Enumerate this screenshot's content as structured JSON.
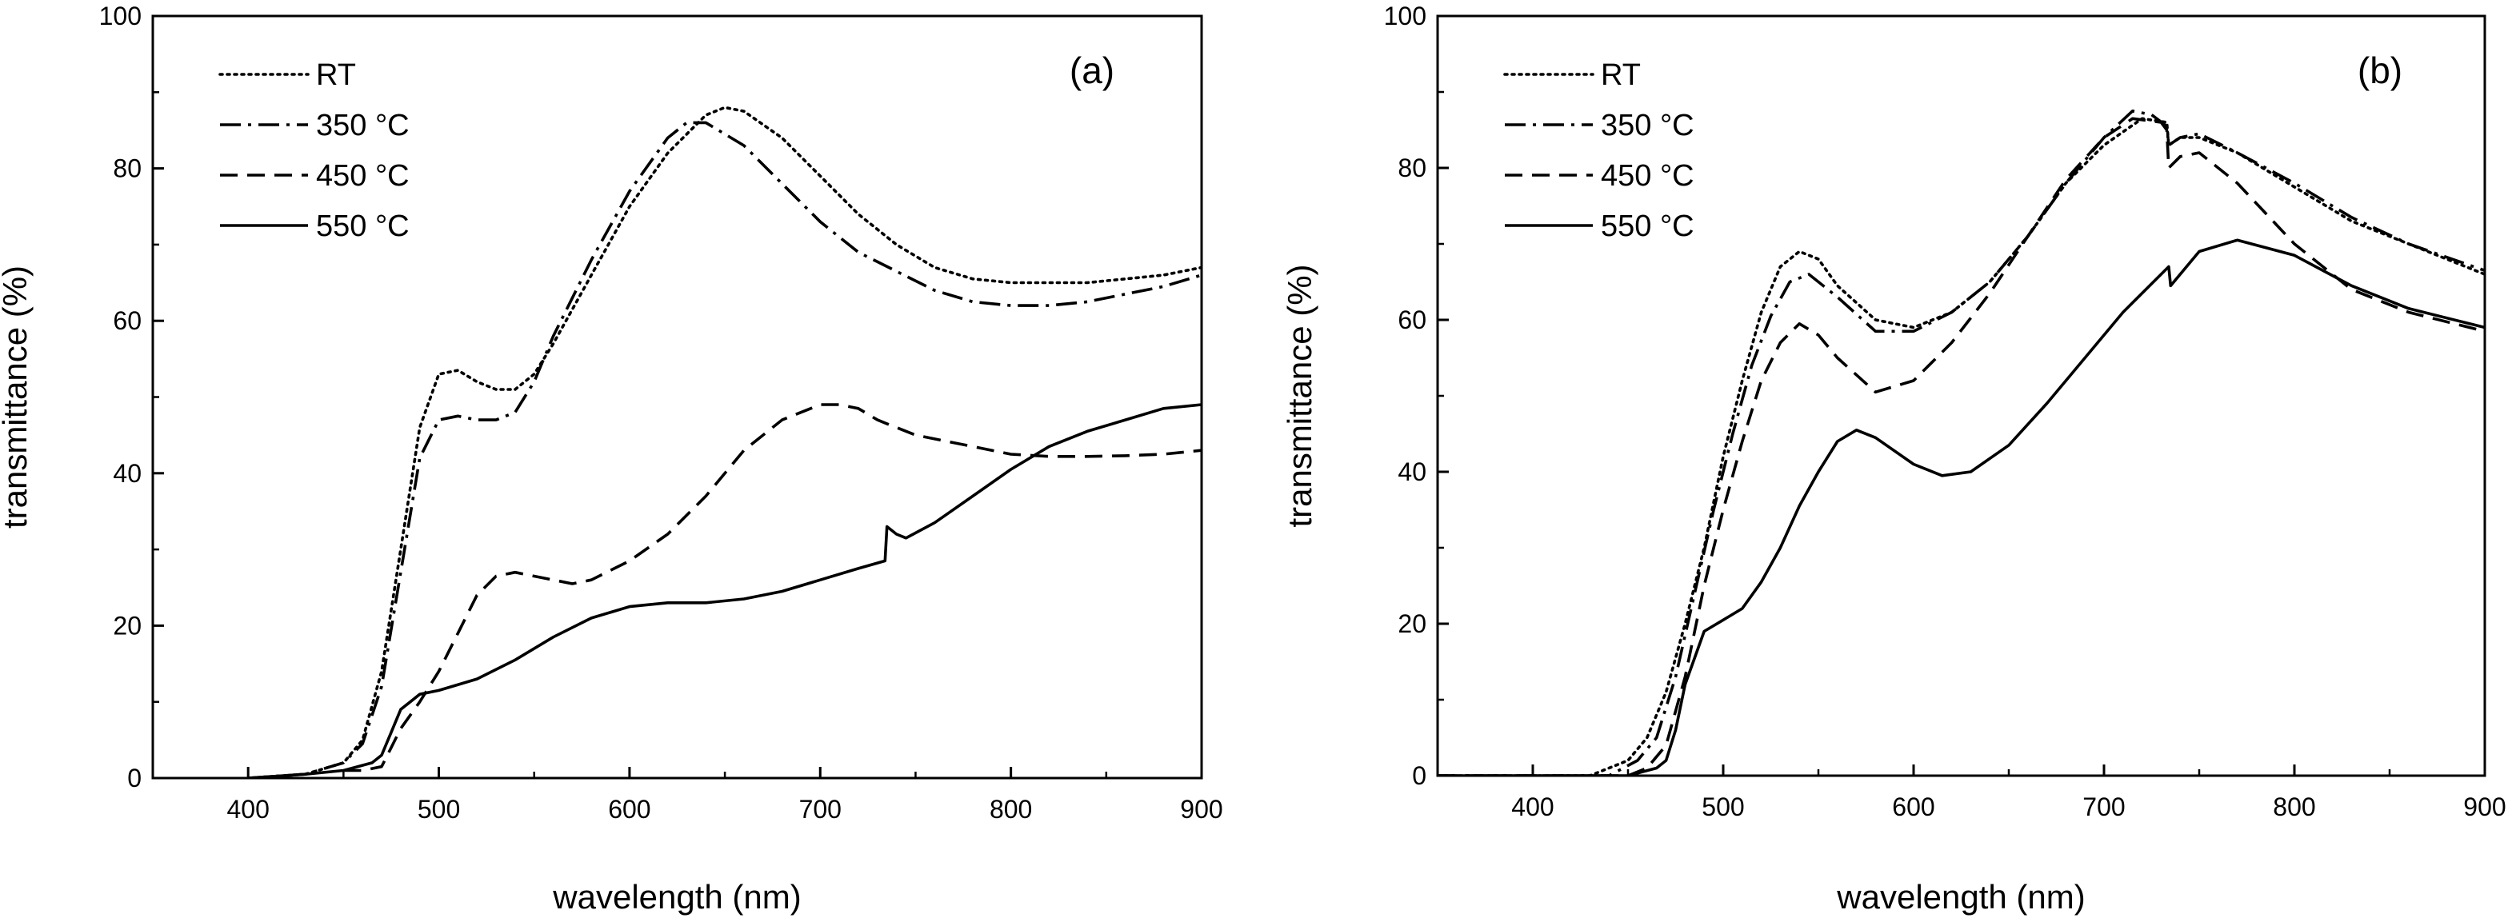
{
  "chart_data": [
    {
      "type": "line",
      "panel_label": "(a)",
      "xlabel": "wavelength (nm)",
      "ylabel": "transmittance (%)",
      "xlim": [
        350,
        900
      ],
      "ylim": [
        0,
        100
      ],
      "xticks": [
        400,
        500,
        600,
        700,
        800,
        900
      ],
      "yticks": [
        0,
        20,
        40,
        60,
        80,
        100
      ],
      "legend_position": "top-left",
      "grid": false,
      "series": [
        {
          "name": "RT",
          "dash": "dotted",
          "x": [
            400,
            430,
            450,
            460,
            470,
            480,
            490,
            500,
            510,
            520,
            530,
            540,
            550,
            560,
            580,
            600,
            620,
            640,
            650,
            660,
            680,
            700,
            720,
            740,
            760,
            780,
            800,
            820,
            840,
            860,
            880,
            900
          ],
          "y": [
            0,
            0.5,
            2,
            5,
            14,
            30,
            46,
            53,
            53.5,
            52,
            51,
            51,
            53,
            57,
            66,
            75,
            82,
            87,
            88,
            87.5,
            84,
            79,
            74,
            70,
            67,
            65.5,
            65,
            65,
            65,
            65.5,
            66,
            67
          ]
        },
        {
          "name": "350 °C",
          "dash": "dashdot",
          "x": [
            400,
            430,
            450,
            460,
            470,
            480,
            490,
            500,
            510,
            520,
            530,
            540,
            550,
            560,
            580,
            600,
            620,
            630,
            640,
            660,
            680,
            700,
            720,
            740,
            760,
            780,
            800,
            820,
            840,
            860,
            880,
            900
          ],
          "y": [
            0,
            0.5,
            2,
            4.5,
            12,
            27,
            42,
            47,
            47.5,
            47,
            47,
            48,
            52,
            58,
            68,
            77,
            84,
            86,
            86,
            83,
            78,
            73,
            69,
            66.5,
            64,
            62.5,
            62,
            62,
            62.5,
            63.5,
            64.5,
            66
          ]
        },
        {
          "name": "450 °C",
          "dash": "dashed",
          "x": [
            450,
            460,
            470,
            475,
            480,
            490,
            500,
            510,
            520,
            530,
            540,
            550,
            560,
            570,
            580,
            600,
            620,
            640,
            660,
            680,
            700,
            710,
            720,
            730,
            735,
            740,
            750,
            780,
            800,
            820,
            840,
            860,
            880,
            900
          ],
          "y": [
            1,
            1,
            1.5,
            4,
            6.5,
            10,
            14,
            19,
            24,
            26.5,
            27,
            26.5,
            26,
            25.5,
            26,
            28.5,
            32,
            37,
            43,
            47,
            49,
            49,
            48.5,
            47,
            46.5,
            46,
            45,
            43.5,
            42.5,
            42.2,
            42.2,
            42.3,
            42.5,
            43
          ]
        },
        {
          "name": "550 °C",
          "dash": "solid",
          "x": [
            400,
            430,
            450,
            465,
            470,
            475,
            480,
            490,
            500,
            520,
            540,
            560,
            580,
            600,
            620,
            640,
            660,
            680,
            700,
            720,
            734,
            735,
            740,
            745,
            760,
            780,
            800,
            820,
            840,
            860,
            880,
            900
          ],
          "y": [
            0,
            0.5,
            1,
            2,
            3,
            6,
            9,
            11,
            11.5,
            13,
            15.5,
            18.5,
            21,
            22.5,
            23,
            23,
            23.5,
            24.5,
            26,
            27.5,
            28.5,
            33,
            32,
            31.5,
            33.5,
            37,
            40.5,
            43.5,
            45.5,
            47,
            48.5,
            49
          ]
        }
      ]
    },
    {
      "type": "line",
      "panel_label": "(b)",
      "xlabel": "wavelength (nm)",
      "ylabel": "transmittance (%)",
      "xlim": [
        350,
        900
      ],
      "ylim": [
        0,
        100
      ],
      "xticks": [
        400,
        500,
        600,
        700,
        800,
        900
      ],
      "yticks": [
        0,
        20,
        40,
        60,
        80,
        100
      ],
      "legend_position": "top-left",
      "grid": false,
      "series": [
        {
          "name": "RT",
          "dash": "dotted",
          "x": [
            350,
            430,
            450,
            460,
            470,
            480,
            490,
            500,
            510,
            520,
            530,
            540,
            550,
            560,
            580,
            600,
            620,
            640,
            660,
            680,
            700,
            720,
            733,
            734,
            740,
            750,
            770,
            800,
            830,
            860,
            900
          ],
          "y": [
            0,
            0,
            2,
            5,
            11,
            20,
            30,
            42,
            52,
            61,
            67,
            69,
            68,
            64.5,
            60,
            59,
            61,
            65,
            71,
            78,
            83,
            86.5,
            86,
            83,
            84,
            84,
            82,
            77.5,
            73,
            70,
            66
          ]
        },
        {
          "name": "350 °C",
          "dash": "dashdot",
          "x": [
            350,
            440,
            455,
            465,
            475,
            485,
            495,
            505,
            515,
            525,
            535,
            545,
            560,
            580,
            600,
            620,
            640,
            660,
            680,
            700,
            715,
            725,
            733,
            734,
            740,
            750,
            770,
            800,
            830,
            860,
            900
          ],
          "y": [
            0,
            0,
            2,
            5,
            13,
            24,
            35,
            45,
            54,
            60.5,
            65,
            66,
            63,
            58.5,
            58.5,
            61,
            65,
            71,
            78,
            84,
            87.5,
            87,
            85.5,
            83,
            84,
            84.5,
            82,
            78,
            73.5,
            70,
            66.5
          ]
        },
        {
          "name": "450 °C",
          "dash": "dashed",
          "x": [
            350,
            450,
            460,
            470,
            480,
            490,
            500,
            510,
            520,
            530,
            540,
            550,
            560,
            580,
            600,
            620,
            640,
            660,
            680,
            700,
            715,
            730,
            733,
            734,
            740,
            750,
            770,
            800,
            830,
            860,
            900
          ],
          "y": [
            0,
            0,
            1,
            4,
            13,
            25,
            35,
            44,
            52,
            57,
            59.5,
            58,
            55,
            50.5,
            52,
            57,
            63.5,
            71,
            78.5,
            84,
            86.5,
            86,
            85,
            80,
            81.5,
            82,
            78,
            70,
            64,
            61,
            58.5
          ]
        },
        {
          "name": "550 °C",
          "dash": "solid",
          "x": [
            350,
            450,
            465,
            470,
            475,
            480,
            490,
            500,
            510,
            520,
            530,
            540,
            550,
            560,
            570,
            580,
            600,
            615,
            630,
            650,
            670,
            690,
            710,
            730,
            734,
            735,
            750,
            770,
            800,
            830,
            860,
            900
          ],
          "y": [
            0,
            0,
            1,
            2,
            6,
            12,
            19,
            20.5,
            22,
            25.5,
            30,
            35.5,
            40,
            44,
            45.5,
            44.5,
            41,
            39.5,
            40,
            43.5,
            49,
            55,
            61,
            66,
            67,
            64.5,
            69,
            70.5,
            68.5,
            64.5,
            61.5,
            59
          ]
        }
      ]
    }
  ]
}
